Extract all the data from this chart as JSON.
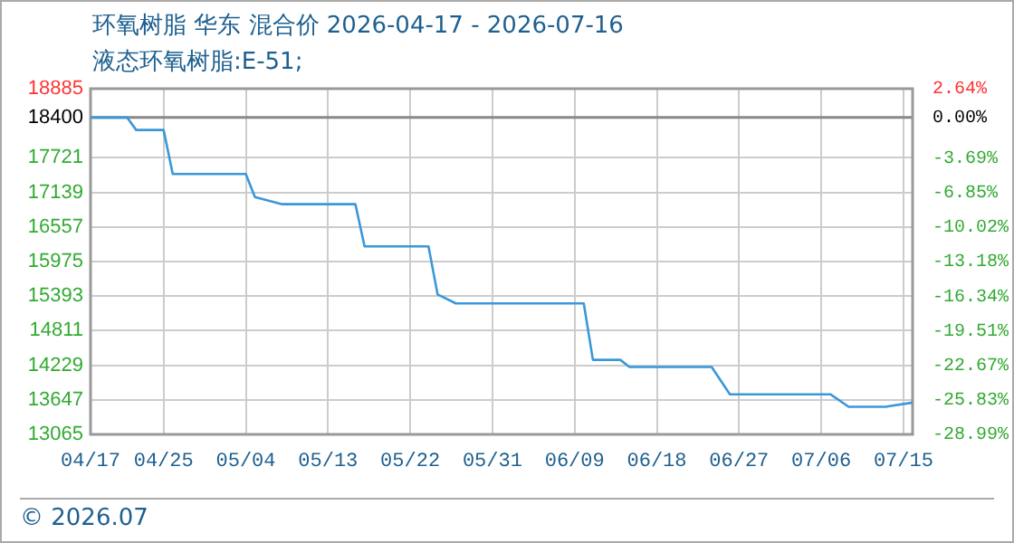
{
  "chart_data": {
    "type": "line",
    "title": "环氧树脂 华东 混合价 2026-04-17 - 2026-07-16",
    "subtitle": "液态环氧树脂:E-51;",
    "x": [
      "2026-04-17",
      "2026-04-21",
      "2026-04-22",
      "2026-04-25",
      "2026-04-26",
      "2026-05-04",
      "2026-05-05",
      "2026-05-08",
      "2026-05-16",
      "2026-05-17",
      "2026-05-24",
      "2026-05-25",
      "2026-05-27",
      "2026-06-10",
      "2026-06-11",
      "2026-06-14",
      "2026-06-15",
      "2026-06-24",
      "2026-06-26",
      "2026-07-07",
      "2026-07-09",
      "2026-07-13",
      "2026-07-16"
    ],
    "series": [
      {
        "color": "#3a98d8",
        "values": [
          18400,
          18400,
          18190,
          18190,
          17450,
          17450,
          17060,
          16940,
          16940,
          16230,
          16230,
          15420,
          15270,
          15270,
          14320,
          14320,
          14200,
          14200,
          13740,
          13740,
          13530,
          13530,
          13600
        ]
      }
    ],
    "xlim": [
      "2026-04-17",
      "2026-07-16"
    ],
    "xticks": [
      {
        "value": "2026-04-17",
        "label": "04/17"
      },
      {
        "value": "2026-04-25",
        "label": "04/25"
      },
      {
        "value": "2026-05-04",
        "label": "05/04"
      },
      {
        "value": "2026-05-13",
        "label": "05/13"
      },
      {
        "value": "2026-05-22",
        "label": "05/22"
      },
      {
        "value": "2026-05-31",
        "label": "05/31"
      },
      {
        "value": "2026-06-09",
        "label": "06/09"
      },
      {
        "value": "2026-06-18",
        "label": "06/18"
      },
      {
        "value": "2026-06-27",
        "label": "06/27"
      },
      {
        "value": "2026-07-06",
        "label": "07/06"
      },
      {
        "value": "2026-07-15",
        "label": "07/15"
      }
    ],
    "ylim": [
      13065,
      18885
    ],
    "yticks": [
      13065,
      13647,
      14229,
      14811,
      15393,
      15975,
      16557,
      17139,
      17721,
      18400,
      18885
    ],
    "y2lim": [
      -28.99,
      2.64
    ],
    "y2ticks": [
      {
        "value": -28.99,
        "label": "-28.99%"
      },
      {
        "value": -25.83,
        "label": "-25.83%"
      },
      {
        "value": -22.67,
        "label": "-22.67%"
      },
      {
        "value": -19.51,
        "label": "-19.51%"
      },
      {
        "value": -16.34,
        "label": "-16.34%"
      },
      {
        "value": -13.18,
        "label": "-13.18%"
      },
      {
        "value": -10.02,
        "label": "-10.02%"
      },
      {
        "value": -6.85,
        "label": "-6.85%"
      },
      {
        "value": -3.69,
        "label": "-3.69%"
      },
      {
        "value": 0,
        "label": "0.00%"
      },
      {
        "value": 2.64,
        "label": "2.64%"
      }
    ],
    "ref_lines": [
      {
        "axis": "y",
        "value": 18400,
        "color": "#888888"
      }
    ],
    "annotations": [
      "© 2026.07"
    ],
    "grid": true,
    "legend": false,
    "marker": "none",
    "line_style": "solid"
  }
}
